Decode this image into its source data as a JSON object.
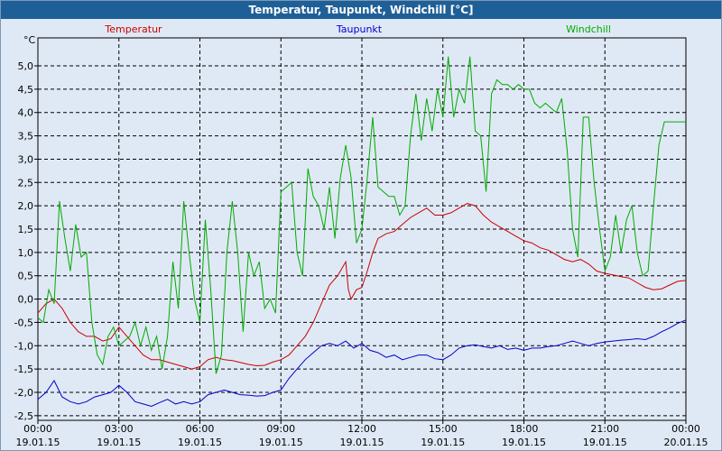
{
  "window": {
    "title": "Temperatur, Taupunkt, Windchill [°C]"
  },
  "chart_data": {
    "type": "line",
    "title": "Temperatur, Taupunkt, Windchill [°C]",
    "yunit": "°C",
    "ylim": [
      -2.6,
      5.6
    ],
    "yticks": [
      5.0,
      4.5,
      4.0,
      3.5,
      3.0,
      2.5,
      2.0,
      1.5,
      1.0,
      0.5,
      0.0,
      -0.5,
      -1.0,
      -1.5,
      -2.0,
      -2.5
    ],
    "ytick_labels": [
      "5,0",
      "4,5",
      "4,0",
      "3,5",
      "3,0",
      "2,5",
      "2,0",
      "1,5",
      "1,0",
      "0,5",
      "0,0",
      "-0,5",
      "-1,0",
      "-1,5",
      "-2,0",
      "-2,5"
    ],
    "xlim": [
      0,
      24
    ],
    "xticks": [
      0,
      3,
      6,
      9,
      12,
      15,
      18,
      21,
      24
    ],
    "xtick_times": [
      "00:00",
      "03:00",
      "06:00",
      "09:00",
      "12:00",
      "15:00",
      "18:00",
      "21:00",
      "00:00"
    ],
    "xtick_dates": [
      "19.01.15",
      "19.01.15",
      "19.01.15",
      "19.01.15",
      "19.01.15",
      "19.01.15",
      "19.01.15",
      "19.01.15",
      "20.01.15"
    ],
    "grid": true,
    "series": [
      {
        "name": "Temperatur",
        "color": "#cc0000",
        "points": [
          [
            0,
            -0.3
          ],
          [
            0.3,
            -0.1
          ],
          [
            0.6,
            0.0
          ],
          [
            0.9,
            -0.2
          ],
          [
            1.2,
            -0.5
          ],
          [
            1.5,
            -0.7
          ],
          [
            1.8,
            -0.8
          ],
          [
            2.1,
            -0.8
          ],
          [
            2.4,
            -0.9
          ],
          [
            2.7,
            -0.85
          ],
          [
            3.0,
            -0.6
          ],
          [
            3.3,
            -0.8
          ],
          [
            3.6,
            -1.0
          ],
          [
            3.9,
            -1.2
          ],
          [
            4.2,
            -1.3
          ],
          [
            4.5,
            -1.3
          ],
          [
            4.8,
            -1.35
          ],
          [
            5.1,
            -1.4
          ],
          [
            5.4,
            -1.45
          ],
          [
            5.7,
            -1.5
          ],
          [
            6.0,
            -1.45
          ],
          [
            6.3,
            -1.3
          ],
          [
            6.6,
            -1.25
          ],
          [
            6.9,
            -1.3
          ],
          [
            7.2,
            -1.32
          ],
          [
            7.5,
            -1.36
          ],
          [
            7.8,
            -1.4
          ],
          [
            8.1,
            -1.43
          ],
          [
            8.4,
            -1.42
          ],
          [
            8.7,
            -1.35
          ],
          [
            9.0,
            -1.3
          ],
          [
            9.3,
            -1.2
          ],
          [
            9.6,
            -1.0
          ],
          [
            9.9,
            -0.8
          ],
          [
            10.2,
            -0.5
          ],
          [
            10.5,
            -0.1
          ],
          [
            10.8,
            0.3
          ],
          [
            11.1,
            0.5
          ],
          [
            11.4,
            0.8
          ],
          [
            11.5,
            0.2
          ],
          [
            11.6,
            0.0
          ],
          [
            11.8,
            0.2
          ],
          [
            12.0,
            0.25
          ],
          [
            12.2,
            0.6
          ],
          [
            12.4,
            1.0
          ],
          [
            12.6,
            1.3
          ],
          [
            12.9,
            1.4
          ],
          [
            13.2,
            1.45
          ],
          [
            13.5,
            1.6
          ],
          [
            13.8,
            1.75
          ],
          [
            14.1,
            1.85
          ],
          [
            14.4,
            1.95
          ],
          [
            14.7,
            1.8
          ],
          [
            15.0,
            1.8
          ],
          [
            15.3,
            1.85
          ],
          [
            15.6,
            1.95
          ],
          [
            15.9,
            2.05
          ],
          [
            16.2,
            2.0
          ],
          [
            16.5,
            1.8
          ],
          [
            16.8,
            1.65
          ],
          [
            17.1,
            1.55
          ],
          [
            17.4,
            1.45
          ],
          [
            17.7,
            1.35
          ],
          [
            18.0,
            1.25
          ],
          [
            18.3,
            1.2
          ],
          [
            18.6,
            1.1
          ],
          [
            18.9,
            1.05
          ],
          [
            19.2,
            0.95
          ],
          [
            19.5,
            0.85
          ],
          [
            19.8,
            0.8
          ],
          [
            20.1,
            0.85
          ],
          [
            20.4,
            0.75
          ],
          [
            20.7,
            0.6
          ],
          [
            21.0,
            0.55
          ],
          [
            21.3,
            0.52
          ],
          [
            21.6,
            0.48
          ],
          [
            21.9,
            0.45
          ],
          [
            22.2,
            0.35
          ],
          [
            22.5,
            0.25
          ],
          [
            22.8,
            0.2
          ],
          [
            23.1,
            0.22
          ],
          [
            23.4,
            0.3
          ],
          [
            23.7,
            0.38
          ],
          [
            24.0,
            0.4
          ]
        ]
      },
      {
        "name": "Taupunkt",
        "color": "#0000cc",
        "points": [
          [
            0,
            -2.15
          ],
          [
            0.3,
            -2.0
          ],
          [
            0.6,
            -1.75
          ],
          [
            0.9,
            -2.1
          ],
          [
            1.2,
            -2.2
          ],
          [
            1.5,
            -2.25
          ],
          [
            1.8,
            -2.2
          ],
          [
            2.1,
            -2.1
          ],
          [
            2.4,
            -2.05
          ],
          [
            2.7,
            -2.0
          ],
          [
            3.0,
            -1.85
          ],
          [
            3.3,
            -2.0
          ],
          [
            3.6,
            -2.2
          ],
          [
            3.9,
            -2.25
          ],
          [
            4.2,
            -2.3
          ],
          [
            4.5,
            -2.22
          ],
          [
            4.8,
            -2.15
          ],
          [
            5.1,
            -2.25
          ],
          [
            5.4,
            -2.2
          ],
          [
            5.7,
            -2.25
          ],
          [
            6.0,
            -2.2
          ],
          [
            6.3,
            -2.05
          ],
          [
            6.6,
            -2.0
          ],
          [
            6.9,
            -1.95
          ],
          [
            7.2,
            -2.0
          ],
          [
            7.5,
            -2.05
          ],
          [
            7.8,
            -2.06
          ],
          [
            8.1,
            -2.08
          ],
          [
            8.4,
            -2.07
          ],
          [
            8.7,
            -2.0
          ],
          [
            9.0,
            -1.95
          ],
          [
            9.3,
            -1.7
          ],
          [
            9.6,
            -1.5
          ],
          [
            9.9,
            -1.3
          ],
          [
            10.2,
            -1.15
          ],
          [
            10.5,
            -1.0
          ],
          [
            10.8,
            -0.95
          ],
          [
            11.1,
            -1.0
          ],
          [
            11.4,
            -0.9
          ],
          [
            11.7,
            -1.05
          ],
          [
            12.0,
            -0.95
          ],
          [
            12.3,
            -1.1
          ],
          [
            12.6,
            -1.15
          ],
          [
            12.9,
            -1.25
          ],
          [
            13.2,
            -1.2
          ],
          [
            13.5,
            -1.3
          ],
          [
            13.8,
            -1.25
          ],
          [
            14.1,
            -1.2
          ],
          [
            14.4,
            -1.2
          ],
          [
            14.7,
            -1.28
          ],
          [
            15.0,
            -1.3
          ],
          [
            15.3,
            -1.2
          ],
          [
            15.6,
            -1.05
          ],
          [
            15.9,
            -1.0
          ],
          [
            16.2,
            -0.98
          ],
          [
            16.5,
            -1.02
          ],
          [
            16.8,
            -1.05
          ],
          [
            17.1,
            -1.0
          ],
          [
            17.4,
            -1.08
          ],
          [
            17.7,
            -1.05
          ],
          [
            18.0,
            -1.1
          ],
          [
            18.3,
            -1.05
          ],
          [
            18.6,
            -1.05
          ],
          [
            18.9,
            -1.02
          ],
          [
            19.2,
            -1.0
          ],
          [
            19.5,
            -0.95
          ],
          [
            19.8,
            -0.9
          ],
          [
            20.1,
            -0.95
          ],
          [
            20.4,
            -1.0
          ],
          [
            20.7,
            -0.95
          ],
          [
            21.0,
            -0.92
          ],
          [
            21.3,
            -0.9
          ],
          [
            21.6,
            -0.88
          ],
          [
            21.9,
            -0.87
          ],
          [
            22.2,
            -0.85
          ],
          [
            22.5,
            -0.87
          ],
          [
            22.8,
            -0.8
          ],
          [
            23.1,
            -0.7
          ],
          [
            23.4,
            -0.62
          ],
          [
            23.7,
            -0.52
          ],
          [
            24.0,
            -0.45
          ]
        ]
      },
      {
        "name": "Windchill",
        "color": "#00aa00",
        "points": [
          [
            0,
            -0.4
          ],
          [
            0.2,
            -0.5
          ],
          [
            0.4,
            0.2
          ],
          [
            0.6,
            -0.1
          ],
          [
            0.8,
            2.1
          ],
          [
            1.0,
            1.3
          ],
          [
            1.2,
            0.6
          ],
          [
            1.4,
            1.6
          ],
          [
            1.6,
            0.9
          ],
          [
            1.8,
            1.0
          ],
          [
            2.0,
            -0.5
          ],
          [
            2.2,
            -1.2
          ],
          [
            2.4,
            -1.4
          ],
          [
            2.6,
            -0.8
          ],
          [
            2.8,
            -0.6
          ],
          [
            3.0,
            -1.0
          ],
          [
            3.2,
            -0.9
          ],
          [
            3.4,
            -0.8
          ],
          [
            3.6,
            -0.5
          ],
          [
            3.8,
            -1.0
          ],
          [
            4.0,
            -0.6
          ],
          [
            4.2,
            -1.1
          ],
          [
            4.4,
            -0.8
          ],
          [
            4.6,
            -1.5
          ],
          [
            4.8,
            -0.8
          ],
          [
            5.0,
            0.8
          ],
          [
            5.2,
            -0.2
          ],
          [
            5.4,
            2.1
          ],
          [
            5.6,
            1.0
          ],
          [
            5.8,
            0.0
          ],
          [
            6.0,
            -0.5
          ],
          [
            6.2,
            1.7
          ],
          [
            6.4,
            0.2
          ],
          [
            6.6,
            -1.6
          ],
          [
            6.8,
            -1.2
          ],
          [
            7.0,
            1.0
          ],
          [
            7.2,
            2.1
          ],
          [
            7.4,
            1.0
          ],
          [
            7.6,
            -0.7
          ],
          [
            7.8,
            1.0
          ],
          [
            8.0,
            0.5
          ],
          [
            8.2,
            0.8
          ],
          [
            8.4,
            -0.2
          ],
          [
            8.6,
            0.0
          ],
          [
            8.8,
            -0.3
          ],
          [
            9.0,
            2.3
          ],
          [
            9.2,
            2.4
          ],
          [
            9.4,
            2.5
          ],
          [
            9.6,
            1.0
          ],
          [
            9.8,
            0.5
          ],
          [
            10.0,
            2.8
          ],
          [
            10.2,
            2.2
          ],
          [
            10.4,
            2.0
          ],
          [
            10.6,
            1.5
          ],
          [
            10.8,
            2.4
          ],
          [
            11.0,
            1.3
          ],
          [
            11.2,
            2.6
          ],
          [
            11.4,
            3.3
          ],
          [
            11.6,
            2.6
          ],
          [
            11.8,
            1.2
          ],
          [
            12.0,
            1.5
          ],
          [
            12.2,
            2.6
          ],
          [
            12.4,
            3.9
          ],
          [
            12.6,
            2.4
          ],
          [
            12.8,
            2.3
          ],
          [
            13.0,
            2.2
          ],
          [
            13.2,
            2.2
          ],
          [
            13.4,
            1.8
          ],
          [
            13.6,
            2.0
          ],
          [
            13.8,
            3.5
          ],
          [
            14.0,
            4.4
          ],
          [
            14.2,
            3.4
          ],
          [
            14.4,
            4.3
          ],
          [
            14.6,
            3.6
          ],
          [
            14.8,
            4.5
          ],
          [
            15.0,
            3.9
          ],
          [
            15.2,
            5.2
          ],
          [
            15.4,
            3.9
          ],
          [
            15.6,
            4.5
          ],
          [
            15.8,
            4.2
          ],
          [
            16.0,
            5.2
          ],
          [
            16.2,
            3.6
          ],
          [
            16.4,
            3.5
          ],
          [
            16.6,
            2.3
          ],
          [
            16.8,
            4.4
          ],
          [
            17.0,
            4.7
          ],
          [
            17.2,
            4.6
          ],
          [
            17.4,
            4.6
          ],
          [
            17.6,
            4.5
          ],
          [
            17.8,
            4.6
          ],
          [
            18.0,
            4.5
          ],
          [
            18.2,
            4.5
          ],
          [
            18.4,
            4.2
          ],
          [
            18.6,
            4.1
          ],
          [
            18.8,
            4.2
          ],
          [
            19.0,
            4.1
          ],
          [
            19.2,
            4.0
          ],
          [
            19.4,
            4.3
          ],
          [
            19.6,
            3.2
          ],
          [
            19.8,
            1.5
          ],
          [
            20.0,
            0.9
          ],
          [
            20.2,
            3.9
          ],
          [
            20.4,
            3.9
          ],
          [
            20.6,
            2.5
          ],
          [
            20.8,
            1.5
          ],
          [
            21.0,
            0.6
          ],
          [
            21.2,
            0.9
          ],
          [
            21.4,
            1.8
          ],
          [
            21.6,
            1.0
          ],
          [
            21.8,
            1.7
          ],
          [
            22.0,
            2.0
          ],
          [
            22.2,
            1.0
          ],
          [
            22.4,
            0.5
          ],
          [
            22.6,
            0.6
          ],
          [
            22.8,
            2.0
          ],
          [
            23.0,
            3.3
          ],
          [
            23.2,
            3.8
          ],
          [
            23.4,
            3.8
          ],
          [
            23.6,
            3.8
          ],
          [
            23.8,
            3.8
          ],
          [
            24.0,
            3.8
          ]
        ]
      }
    ]
  }
}
